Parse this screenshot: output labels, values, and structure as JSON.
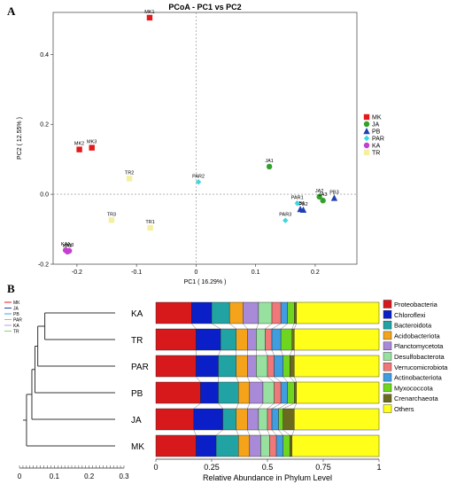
{
  "panels": {
    "a_letter": "A",
    "b_letter": "B"
  },
  "chart_data": [
    {
      "type": "scatter",
      "title": "PCoA - PC1 vs PC2",
      "xlabel": "PC1 ( 16.29% )",
      "ylabel": "PC2 ( 12.55% )",
      "xlim": [
        -0.24,
        0.27
      ],
      "ylim": [
        -0.2,
        0.52
      ],
      "xticks": [
        -0.2,
        -0.1,
        0.0,
        0.1,
        0.2
      ],
      "ytick_values": [
        -0.2,
        0.0,
        0.2,
        0.4
      ],
      "ytick_labels": [
        "-0.2",
        "0.0",
        "0.2",
        "0.4"
      ],
      "grid": false,
      "zero_lines": true,
      "legend_position": "right",
      "groups": [
        {
          "name": "MK",
          "marker": "square",
          "color": "#e31a1c"
        },
        {
          "name": "JA",
          "marker": "circle",
          "color": "#33a02c"
        },
        {
          "name": "PB",
          "marker": "triangle",
          "color": "#1f3fb4"
        },
        {
          "name": "PAR",
          "marker": "diamond",
          "color": "#3fd6e0"
        },
        {
          "name": "KA",
          "marker": "circle",
          "color": "#c63fd0"
        },
        {
          "name": "TR",
          "marker": "square",
          "color": "#f5f0a0"
        }
      ],
      "points": [
        {
          "label": "MK1",
          "group": "MK",
          "x": -0.078,
          "y": 0.505
        },
        {
          "label": "MK2",
          "group": "MK",
          "x": -0.196,
          "y": 0.128
        },
        {
          "label": "MK3",
          "group": "MK",
          "x": -0.175,
          "y": 0.133
        },
        {
          "label": "JA1",
          "group": "JA",
          "x": 0.123,
          "y": 0.079
        },
        {
          "label": "JA2",
          "group": "JA",
          "x": 0.207,
          "y": -0.007
        },
        {
          "label": "JA3",
          "group": "JA",
          "x": 0.213,
          "y": -0.018
        },
        {
          "label": "PB1",
          "group": "PB",
          "x": 0.175,
          "y": -0.043
        },
        {
          "label": "PB2",
          "group": "PB",
          "x": 0.18,
          "y": -0.045
        },
        {
          "label": "PB3",
          "group": "PB",
          "x": 0.232,
          "y": -0.011
        },
        {
          "label": "PAR1",
          "group": "PAR",
          "x": 0.17,
          "y": -0.026
        },
        {
          "label": "PAR2",
          "group": "PAR",
          "x": 0.004,
          "y": 0.035
        },
        {
          "label": "PAR3",
          "group": "PAR",
          "x": 0.15,
          "y": -0.075
        },
        {
          "label": "KA1",
          "group": "KA",
          "x": -0.219,
          "y": -0.16
        },
        {
          "label": "KA2",
          "group": "KA",
          "x": -0.216,
          "y": -0.164
        },
        {
          "label": "KA3",
          "group": "KA",
          "x": -0.213,
          "y": -0.162
        },
        {
          "label": "TR1",
          "group": "TR",
          "x": -0.077,
          "y": -0.096
        },
        {
          "label": "TR2",
          "group": "TR",
          "x": -0.112,
          "y": 0.045
        },
        {
          "label": "TR3",
          "group": "TR",
          "x": -0.142,
          "y": -0.074
        }
      ]
    },
    {
      "type": "dendrogram",
      "scale_ticks": [
        "0",
        "0.1",
        "0.2",
        "0.3"
      ],
      "scale_max": 0.34,
      "leaves": [
        "KA",
        "TR",
        "PAR",
        "PB",
        "JA",
        "MK"
      ],
      "merges": [
        {
          "id": "c1",
          "children": [
            "KA",
            "TR"
          ],
          "height": 0.25
        },
        {
          "id": "c2",
          "children": [
            "c1",
            "PAR"
          ],
          "height": 0.275
        },
        {
          "id": "c3",
          "children": [
            "c2",
            "PB"
          ],
          "height": 0.285
        },
        {
          "id": "c4",
          "children": [
            "c3",
            "JA"
          ],
          "height": 0.296
        },
        {
          "id": "c5",
          "children": [
            "c4",
            "MK"
          ],
          "height": 0.315
        }
      ],
      "legend": [
        {
          "name": "MK",
          "color": "#e31a1c"
        },
        {
          "name": "JA",
          "color": "#1f3fb4"
        },
        {
          "name": "PB",
          "color": "#3fa6e0"
        },
        {
          "name": "PAR",
          "color": "#f5a623"
        },
        {
          "name": "KA",
          "color": "#b3a1e0"
        },
        {
          "name": "TR",
          "color": "#7fd67f"
        }
      ]
    },
    {
      "type": "bar",
      "stacked": true,
      "orientation": "horizontal",
      "xlabel": "Relative Abundance in Phylum Level",
      "xlim": [
        0,
        1
      ],
      "xticks": [
        "0",
        "0.25",
        "0.5",
        "0.75",
        "1"
      ],
      "legend_position": "right",
      "categories": [
        "KA",
        "TR",
        "PAR",
        "PB",
        "JA",
        "MK"
      ],
      "series": [
        {
          "name": "Proteobacteria",
          "color": "#d7191c",
          "values": [
            0.16,
            0.18,
            0.18,
            0.2,
            0.17,
            0.18
          ]
        },
        {
          "name": "Chloroflexi",
          "color": "#0a1fc8",
          "values": [
            0.09,
            0.11,
            0.1,
            0.08,
            0.13,
            0.09
          ]
        },
        {
          "name": "Bacteroidota",
          "color": "#21a3a3",
          "values": [
            0.08,
            0.07,
            0.08,
            0.09,
            0.06,
            0.1
          ]
        },
        {
          "name": "Acidobacteriota",
          "color": "#f5a31a",
          "values": [
            0.06,
            0.05,
            0.05,
            0.05,
            0.05,
            0.05
          ]
        },
        {
          "name": "Planctomycetota",
          "color": "#a98ad8",
          "values": [
            0.07,
            0.04,
            0.04,
            0.06,
            0.05,
            0.05
          ]
        },
        {
          "name": "Desulfobacterota",
          "color": "#98e0a0",
          "values": [
            0.06,
            0.04,
            0.05,
            0.05,
            0.04,
            0.04
          ]
        },
        {
          "name": "Verrucomicrobiota",
          "color": "#f07878",
          "values": [
            0.04,
            0.03,
            0.03,
            0.03,
            0.02,
            0.03
          ]
        },
        {
          "name": "Actinobacteriota",
          "color": "#3f9de0",
          "values": [
            0.03,
            0.04,
            0.04,
            0.03,
            0.03,
            0.03
          ]
        },
        {
          "name": "Myxococcota",
          "color": "#6fd61f",
          "values": [
            0.03,
            0.05,
            0.03,
            0.03,
            0.02,
            0.03
          ]
        },
        {
          "name": "Crenarchaeota",
          "color": "#6b6b1f",
          "values": [
            0.01,
            0.01,
            0.02,
            0.01,
            0.05,
            0.01
          ]
        },
        {
          "name": "Others",
          "color": "#ffff19",
          "values": [
            0.37,
            0.38,
            0.38,
            0.37,
            0.38,
            0.39
          ]
        }
      ]
    }
  ]
}
